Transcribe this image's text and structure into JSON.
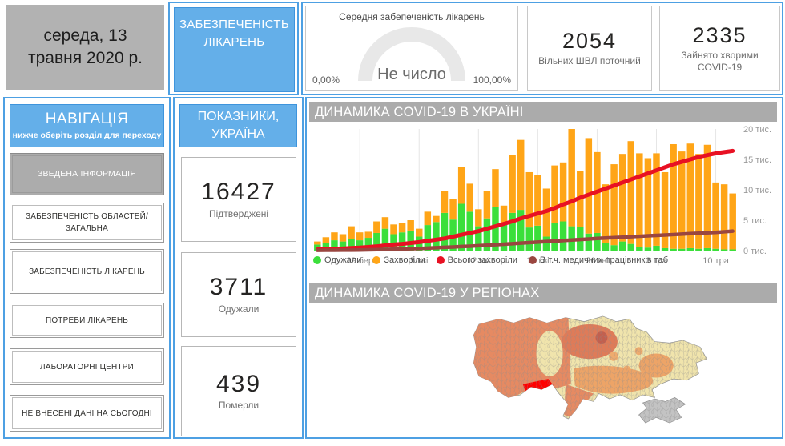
{
  "date_box": {
    "text": "середа, 13 травня 2020 р."
  },
  "section_button": {
    "label": "ЗАБЕЗПЕЧЕНІСТЬ ЛІКАРЕНЬ"
  },
  "gauge": {
    "title": "Середня забепеченість лікарень",
    "value_text": "Не число",
    "min_label": "0,00%",
    "max_label": "100,00%"
  },
  "top_stats": [
    {
      "value": "2054",
      "label": "Вільних ШВЛ поточний"
    },
    {
      "value": "2335",
      "label": "Зайнято хворими COVID-19"
    }
  ],
  "nav": {
    "title": "НАВІГАЦІЯ",
    "subtitle": "нижче оберіть розділ для переходу",
    "items": [
      {
        "label": "ЗВЕДЕНА ІНФОРМАЦІЯ",
        "active": true
      },
      {
        "label": "ЗАБЕЗПЕЧЕНІСТЬ ОБЛАСТЕЙ/ ЗАГАЛЬНА",
        "active": false
      },
      {
        "label": "ЗАБЕЗПЕЧЕНІСТЬ ЛІКАРЕНЬ",
        "active": false
      },
      {
        "label": "ПОТРЕБИ ЛІКАРЕНЬ",
        "active": false
      },
      {
        "label": "ЛАБОРАТОРНІ ЦЕНТРИ",
        "active": false
      },
      {
        "label": "НЕ ВНЕСЕНІ ДАНІ НА СЬОГОДНІ",
        "active": false
      }
    ]
  },
  "indicators": {
    "title": "ПОКАЗНИКИ, УКРАЇНА",
    "cards": [
      {
        "value": "16427",
        "label": "Підтверджені"
      },
      {
        "value": "3711",
        "label": "Одужали"
      },
      {
        "value": "439",
        "label": "Померли"
      }
    ]
  },
  "chart_section": {
    "title": "ДИНАМИКА COVID-19 В УКРАЇНІ"
  },
  "map_section": {
    "title": "ДИНАМИКА COVID-19 У РЕГІОНАХ"
  },
  "colors": {
    "accent_blue": "#64AFE9",
    "border_blue": "#4DA0E3",
    "header_gray": "#ABABAB",
    "recovered_green": "#3BDF3B",
    "sick_orange": "#FFA517",
    "total_red": "#E81123",
    "medics_maroon": "#9A4640",
    "map_low": "#F0E4AC",
    "map_mid": "#EDA467",
    "map_high": "#E68A62",
    "map_max": "#FF0000",
    "map_nodata": "#C3C3C3"
  },
  "chart_data": {
    "type": "bar",
    "subtype": "stacked-bars-with-lines",
    "title": "ДИНАМИКА COVID-19 В УКРАЇНІ",
    "xlabel": "",
    "ylabel": "тис.",
    "ylim": [
      0,
      20
    ],
    "grid": "vertical-weekly",
    "legend_position": "bottom-left",
    "y_tick_labels": [
      "0 тис.",
      "5 тис.",
      "10 тис.",
      "15 тис.",
      "20 тис."
    ],
    "y_tick_values": [
      0,
      5,
      10,
      15,
      20
    ],
    "x_tick_labels": [
      "29 бер",
      "5 кві",
      "12 кві",
      "19 кві",
      "26 кві",
      "3 тра",
      "10 тра"
    ],
    "x_tick_bar_index": [
      5,
      12,
      19,
      26,
      33,
      40,
      47
    ],
    "series": [
      {
        "name": "Одужали",
        "type": "bar",
        "stack": 0,
        "color": "#3BDF3B",
        "values": [
          1.0,
          1.3,
          1.7,
          1.5,
          1.9,
          1.7,
          2.1,
          2.9,
          3.6,
          2.7,
          3.0,
          3.3,
          2.3,
          4.2,
          4.7,
          6.2,
          5.1,
          7.7,
          6.4,
          4.0,
          5.3,
          7.2,
          4.4,
          6.2,
          6.7,
          3.8,
          4.1,
          2.3,
          4.5,
          4.8,
          4.0,
          3.9,
          2.8,
          2.9,
          1.2,
          0.9,
          1.5,
          1.1,
          0.6,
          0.5,
          0.8,
          0.4,
          0.3,
          0.3,
          0.4,
          0.3,
          0.4,
          0.3,
          0.2,
          0.2
        ]
      },
      {
        "name": "Захворіли",
        "type": "bar",
        "stack": 1,
        "color": "#FFA517",
        "values": [
          0.5,
          0.9,
          1.3,
          1.2,
          2.1,
          1.3,
          1.0,
          1.9,
          1.9,
          1.6,
          1.6,
          1.7,
          1.3,
          2.2,
          1.0,
          3.6,
          3.4,
          6.0,
          4.6,
          2.8,
          4.5,
          6.2,
          3.0,
          9.5,
          11.5,
          9.1,
          8.4,
          7.9,
          9.5,
          9.7,
          16.0,
          9.2,
          15.7,
          13.3,
          9.7,
          13.3,
          14.4,
          16.9,
          15.4,
          14.7,
          15.2,
          12.5,
          17.2,
          16.0,
          17.2,
          15.6,
          17.0,
          10.9,
          10.7,
          9.2
        ]
      },
      {
        "name": "Всього захворіли",
        "type": "line",
        "color": "#E81123",
        "width": 5,
        "values": [
          0.2,
          0.25,
          0.3,
          0.35,
          0.42,
          0.5,
          0.6,
          0.7,
          0.85,
          1.0,
          1.1,
          1.25,
          1.4,
          1.6,
          1.8,
          2.0,
          2.3,
          2.6,
          2.9,
          3.2,
          3.6,
          4.0,
          4.4,
          4.8,
          5.3,
          5.7,
          6.1,
          6.5,
          7.0,
          7.6,
          8.1,
          8.7,
          9.2,
          9.7,
          10.2,
          10.7,
          11.2,
          11.7,
          12.2,
          12.7,
          13.2,
          13.7,
          14.2,
          14.6,
          15.0,
          15.4,
          15.7,
          16.0,
          16.2,
          16.4
        ]
      },
      {
        "name": "В т.ч. медичних працівників таб",
        "type": "line",
        "color": "#9A4640",
        "width": 4.5,
        "values": [
          0.05,
          0.06,
          0.07,
          0.08,
          0.09,
          0.1,
          0.13,
          0.16,
          0.2,
          0.23,
          0.27,
          0.31,
          0.35,
          0.41,
          0.47,
          0.54,
          0.6,
          0.67,
          0.73,
          0.8,
          0.89,
          0.97,
          1.06,
          1.14,
          1.23,
          1.31,
          1.4,
          1.49,
          1.57,
          1.66,
          1.74,
          1.83,
          1.91,
          2.0,
          2.07,
          2.14,
          2.21,
          2.29,
          2.36,
          2.43,
          2.5,
          2.57,
          2.64,
          2.71,
          2.79,
          2.86,
          2.93,
          3.0,
          3.1,
          3.2
        ]
      }
    ]
  }
}
